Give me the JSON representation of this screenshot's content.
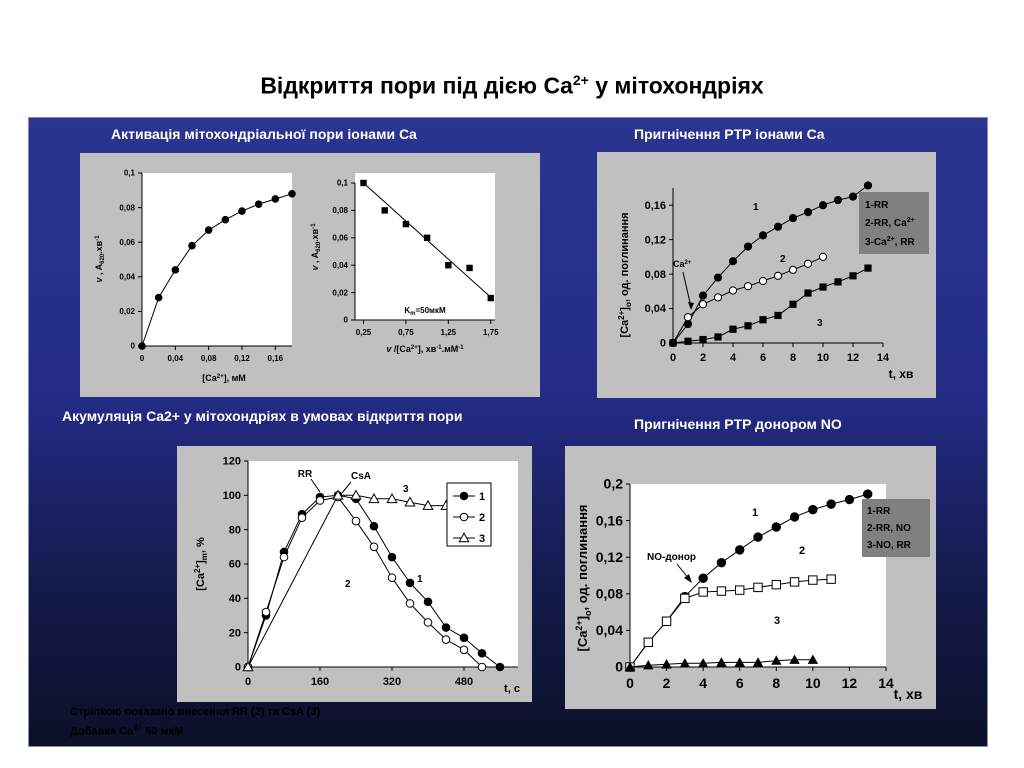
{
  "title": "Відкриття пори під дією Ca",
  "title_sup": "2+",
  "title_tail": " у мітохондріях",
  "headings": {
    "top_left": "Активація мітохондріальної пори іонами Ca",
    "top_right": "Пригнічення PTP іонами Ca",
    "bottom_left": "Акумуляція Ca2+ у мітохондріях в умовах відкриття пори",
    "bottom_right": "Пригнічення PTP донором NO"
  },
  "notes": {
    "line1_a": "Стрілкою показано внесення RR (",
    "line1_b": "2",
    "line1_c": ") та CsA (",
    "line1_d": "3",
    "line1_e": ")",
    "line2_a": "Добавка Ca",
    "line2_sup": "2+",
    "line2_b": " 60 мкМ"
  },
  "colors": {
    "panel": "#232b85",
    "plot_bg": "#c0c0c0",
    "legend_bg": "#808080"
  },
  "chart_data": [
    {
      "id": "kinetics",
      "type": "line",
      "xlabel": "[Ca2+], мМ",
      "ylabel": "v , A620.хв-1",
      "xlim": [
        0,
        0.18
      ],
      "ylim": [
        0,
        0.1
      ],
      "xticks": [
        "0",
        "0,04",
        "0,08",
        "0,12",
        "0,16"
      ],
      "yticks": [
        "0",
        "0,02",
        "0,04",
        "0,06",
        "0,08",
        "0,1"
      ],
      "series": [
        {
          "marker": "filled-circle",
          "x": [
            0,
            0.02,
            0.04,
            0.06,
            0.08,
            0.1,
            0.12,
            0.14,
            0.16,
            0.18
          ],
          "y": [
            0,
            0.028,
            0.044,
            0.058,
            0.067,
            0.073,
            0.078,
            0.082,
            0.085,
            0.088
          ]
        }
      ]
    },
    {
      "id": "reciprocal",
      "type": "scatter",
      "xlabel": "v /[Ca2+], хв-1.мМ-1",
      "ylabel": "v , A620.хв-1",
      "xlim": [
        0.15,
        1.8
      ],
      "ylim": [
        0,
        0.1
      ],
      "xticks": [
        "0,25",
        "0,75",
        "1,25",
        "1,75"
      ],
      "yticks": [
        "0",
        "0,02",
        "0,04",
        "0,06",
        "0,08",
        "0,1"
      ],
      "annotation": "Km=50мкМ",
      "series": [
        {
          "marker": "filled-square",
          "x": [
            0.25,
            0.5,
            0.75,
            1.0,
            1.25,
            1.5,
            1.75
          ],
          "y": [
            0.1,
            0.08,
            0.07,
            0.06,
            0.04,
            0.038,
            0.016
          ]
        }
      ],
      "fit_line": {
        "x": [
          0.25,
          1.78
        ],
        "y": [
          0.1,
          0.015
        ]
      }
    },
    {
      "id": "ca_inhibition",
      "type": "line",
      "xlabel": "t, хв",
      "ylabel": "[Ca2+]o, од. поглинання",
      "xlim": [
        0,
        14
      ],
      "ylim": [
        0,
        0.18
      ],
      "xticks": [
        "0",
        "2",
        "4",
        "6",
        "8",
        "10",
        "12",
        "14"
      ],
      "yticks": [
        "0",
        "0,04",
        "0,08",
        "0,12",
        "0,16"
      ],
      "legend": [
        "1-RR",
        "2-RR, Ca2+",
        "3-Ca2+, RR"
      ],
      "legend_position": "top-right",
      "arrow_label": "Ca2+",
      "curve_labels": [
        "1",
        "2",
        "3"
      ],
      "series": [
        {
          "name": "1-RR",
          "marker": "filled-circle",
          "x": [
            0,
            1,
            2,
            3,
            4,
            5,
            6,
            7,
            8,
            9,
            10,
            11,
            12,
            13
          ],
          "y": [
            0,
            0.022,
            0.055,
            0.076,
            0.095,
            0.112,
            0.125,
            0.135,
            0.145,
            0.152,
            0.16,
            0.166,
            0.17,
            0.183
          ]
        },
        {
          "name": "2-RR, Ca2+",
          "marker": "open-circle",
          "x": [
            0,
            1,
            2,
            3,
            4,
            5,
            6,
            7,
            8,
            9,
            10
          ],
          "y": [
            0,
            0.03,
            0.045,
            0.053,
            0.061,
            0.066,
            0.072,
            0.078,
            0.085,
            0.092,
            0.1
          ]
        },
        {
          "name": "3-Ca2+, RR",
          "marker": "filled-square",
          "x": [
            0,
            1,
            2,
            3,
            4,
            5,
            6,
            7,
            8,
            9,
            10,
            11,
            12,
            13
          ],
          "y": [
            0,
            0.002,
            0.004,
            0.007,
            0.016,
            0.02,
            0.027,
            0.032,
            0.045,
            0.058,
            0.065,
            0.071,
            0.078,
            0.087
          ]
        }
      ]
    },
    {
      "id": "accumulation",
      "type": "line",
      "xlabel": "t, c",
      "ylabel": "[Ca2+]m, %",
      "xlim": [
        0,
        600
      ],
      "ylim": [
        0,
        120
      ],
      "xticks": [
        "0",
        "160",
        "320",
        "480"
      ],
      "yticks": [
        "0",
        "20",
        "40",
        "60",
        "80",
        "100",
        "120"
      ],
      "legend": [
        "1",
        "2",
        "3"
      ],
      "legend_position": "right",
      "arrow_labels": [
        "RR",
        "CsA"
      ],
      "curve_labels": [
        "1",
        "2",
        "3"
      ],
      "series": [
        {
          "name": "1",
          "marker": "filled-circle",
          "x": [
            0,
            40,
            80,
            120,
            160,
            200,
            240,
            280,
            320,
            360,
            400,
            440,
            480,
            520,
            560
          ],
          "y": [
            0,
            30,
            67,
            89,
            99,
            100,
            98,
            82,
            64,
            49,
            38,
            23,
            17,
            8,
            0
          ]
        },
        {
          "name": "2",
          "marker": "open-circle",
          "x": [
            0,
            40,
            80,
            120,
            160,
            200,
            240,
            280,
            320,
            360,
            400,
            440,
            480,
            520
          ],
          "y": [
            0,
            32,
            64,
            87,
            97,
            99,
            85,
            70,
            52,
            37,
            26,
            16,
            10,
            0
          ]
        },
        {
          "name": "3",
          "marker": "open-triangle",
          "x": [
            0,
            200,
            240,
            280,
            320,
            360,
            400,
            440
          ],
          "y": [
            0,
            100,
            100,
            98,
            98,
            96,
            94,
            94
          ]
        }
      ]
    },
    {
      "id": "no_inhibition",
      "type": "line",
      "xlabel": "t, хв",
      "ylabel": "[Ca2+]o, од. поглинання",
      "xlim": [
        0,
        14
      ],
      "ylim": [
        0,
        0.2
      ],
      "xticks": [
        "0",
        "2",
        "4",
        "6",
        "8",
        "10",
        "12",
        "14"
      ],
      "yticks": [
        "0",
        "0,04",
        "0,08",
        "0,12",
        "0,16",
        "0,2"
      ],
      "legend": [
        "1-RR",
        "2-RR, NO",
        "3-NO, RR"
      ],
      "legend_position": "top-right",
      "arrow_label": "NO-донор",
      "curve_labels": [
        "1",
        "2",
        "3"
      ],
      "series": [
        {
          "name": "1-RR",
          "marker": "filled-circle",
          "x": [
            0,
            1,
            2,
            3,
            4,
            5,
            6,
            7,
            8,
            9,
            10,
            11,
            12,
            13
          ],
          "y": [
            0,
            0.027,
            0.05,
            0.077,
            0.097,
            0.114,
            0.128,
            0.142,
            0.153,
            0.164,
            0.172,
            0.178,
            0.183,
            0.189
          ]
        },
        {
          "name": "2-RR, NO",
          "marker": "open-square",
          "x": [
            0,
            1,
            2,
            3,
            4,
            5,
            6,
            7,
            8,
            9,
            10,
            11
          ],
          "y": [
            0,
            0.027,
            0.05,
            0.075,
            0.082,
            0.083,
            0.084,
            0.087,
            0.09,
            0.093,
            0.095,
            0.096
          ]
        },
        {
          "name": "3-NO, RR",
          "marker": "filled-triangle",
          "x": [
            0,
            1,
            2,
            3,
            4,
            5,
            6,
            7,
            8,
            9,
            10
          ],
          "y": [
            0,
            0.002,
            0.003,
            0.004,
            0.004,
            0.005,
            0.005,
            0.005,
            0.007,
            0.008,
            0.008
          ]
        }
      ]
    }
  ]
}
